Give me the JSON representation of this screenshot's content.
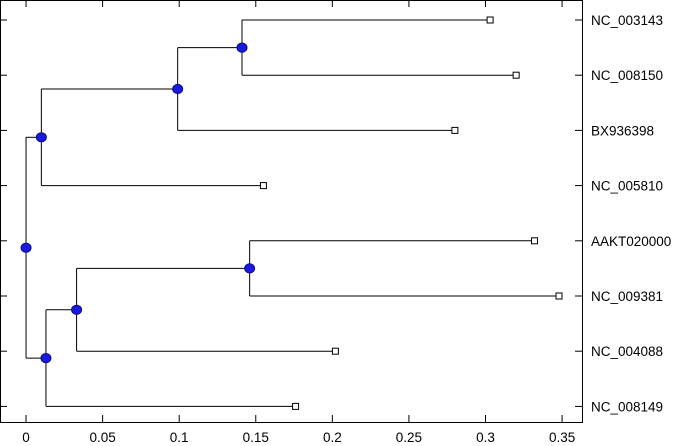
{
  "tree": {
    "node_color": "#1a1adf",
    "leaves": [
      {
        "label": "NC_003143",
        "distance": 0.303
      },
      {
        "label": "NC_008150",
        "distance": 0.32
      },
      {
        "label": "BX936398",
        "distance": 0.28
      },
      {
        "label": "NC_005810",
        "distance": 0.155
      },
      {
        "label": "AAKT020000",
        "distance": 0.332
      },
      {
        "label": "NC_009381",
        "distance": 0.348
      },
      {
        "label": "NC_004088",
        "distance": 0.202
      },
      {
        "label": "NC_008149",
        "distance": 0.176
      }
    ],
    "internal_nodes": [
      {
        "id": "root",
        "distance": 0.0,
        "children": [
          "A",
          "E"
        ]
      },
      {
        "id": "A",
        "distance": 0.01,
        "children": [
          "B",
          "leaf3"
        ]
      },
      {
        "id": "B",
        "distance": 0.099,
        "children": [
          "C",
          "leaf2"
        ]
      },
      {
        "id": "C",
        "distance": 0.141,
        "children": [
          "leaf0",
          "leaf1"
        ]
      },
      {
        "id": "E",
        "distance": 0.013,
        "children": [
          "F",
          "leaf7"
        ]
      },
      {
        "id": "F",
        "distance": 0.033,
        "children": [
          "G",
          "leaf6"
        ]
      },
      {
        "id": "G",
        "distance": 0.146,
        "children": [
          "leaf4",
          "leaf5"
        ]
      }
    ]
  },
  "x_axis": {
    "range": [
      -0.017,
      0.363
    ],
    "ticks": [
      {
        "value": 0,
        "label": "0"
      },
      {
        "value": 0.05,
        "label": "0.05"
      },
      {
        "value": 0.1,
        "label": "0.1"
      },
      {
        "value": 0.15,
        "label": "0.15"
      },
      {
        "value": 0.2,
        "label": "0.2"
      },
      {
        "value": 0.25,
        "label": "0.25"
      },
      {
        "value": 0.3,
        "label": "0.3"
      },
      {
        "value": 0.35,
        "label": "0.35"
      }
    ]
  }
}
